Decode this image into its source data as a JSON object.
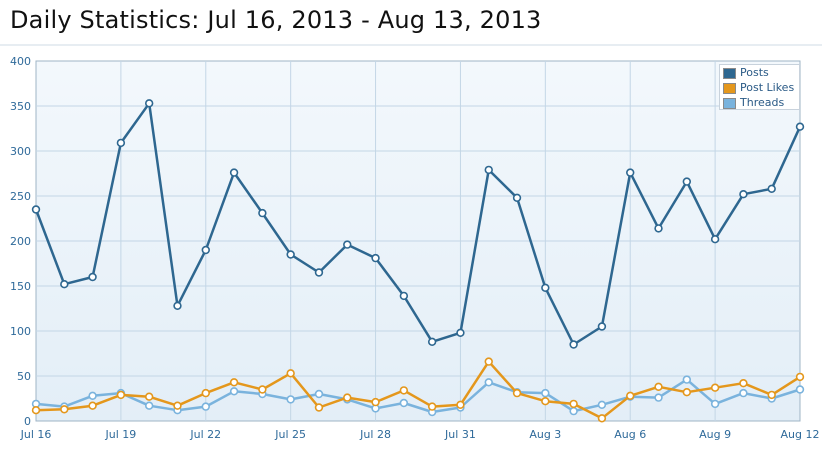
{
  "page": {
    "title": "Daily Statistics: Jul 16, 2013 - Aug 13, 2013"
  },
  "chart_data": {
    "type": "line",
    "title": "",
    "xlabel": "",
    "ylabel": "",
    "ylim": [
      0,
      400
    ],
    "yticks": [
      0,
      50,
      100,
      150,
      200,
      250,
      300,
      350,
      400
    ],
    "x": [
      "Jul 16",
      "Jul 17",
      "Jul 18",
      "Jul 19",
      "Jul 20",
      "Jul 21",
      "Jul 22",
      "Jul 23",
      "Jul 24",
      "Jul 25",
      "Jul 26",
      "Jul 27",
      "Jul 28",
      "Jul 29",
      "Jul 30",
      "Jul 31",
      "Aug 1",
      "Aug 2",
      "Aug 3",
      "Aug 4",
      "Aug 5",
      "Aug 6",
      "Aug 7",
      "Aug 8",
      "Aug 9",
      "Aug 10",
      "Aug 11",
      "Aug 12"
    ],
    "xtick_labels": [
      "Jul 16",
      "Jul 19",
      "Jul 22",
      "Jul 25",
      "Jul 28",
      "Jul 31",
      "Aug 3",
      "Aug 6",
      "Aug 9",
      "Aug 12"
    ],
    "grid": true,
    "legend_position": "top-right",
    "series": [
      {
        "name": "Posts",
        "color": "#2e6790",
        "values": [
          235,
          152,
          160,
          309,
          353,
          128,
          190,
          276,
          231,
          185,
          165,
          196,
          181,
          139,
          88,
          98,
          279,
          248,
          148,
          85,
          105,
          276,
          214,
          266,
          202,
          252,
          258,
          327
        ]
      },
      {
        "name": "Post Likes",
        "color": "#e4971c",
        "values": [
          12,
          13,
          17,
          29,
          27,
          17,
          31,
          43,
          35,
          53,
          15,
          26,
          21,
          34,
          16,
          18,
          66,
          31,
          22,
          19,
          3,
          28,
          38,
          32,
          37,
          42,
          29,
          49
        ]
      },
      {
        "name": "Threads",
        "color": "#7ab3dd",
        "values": [
          19,
          16,
          28,
          31,
          17,
          12,
          16,
          33,
          30,
          24,
          30,
          24,
          14,
          20,
          10,
          15,
          43,
          32,
          31,
          11,
          18,
          27,
          26,
          46,
          19,
          31,
          25,
          35
        ]
      }
    ]
  }
}
